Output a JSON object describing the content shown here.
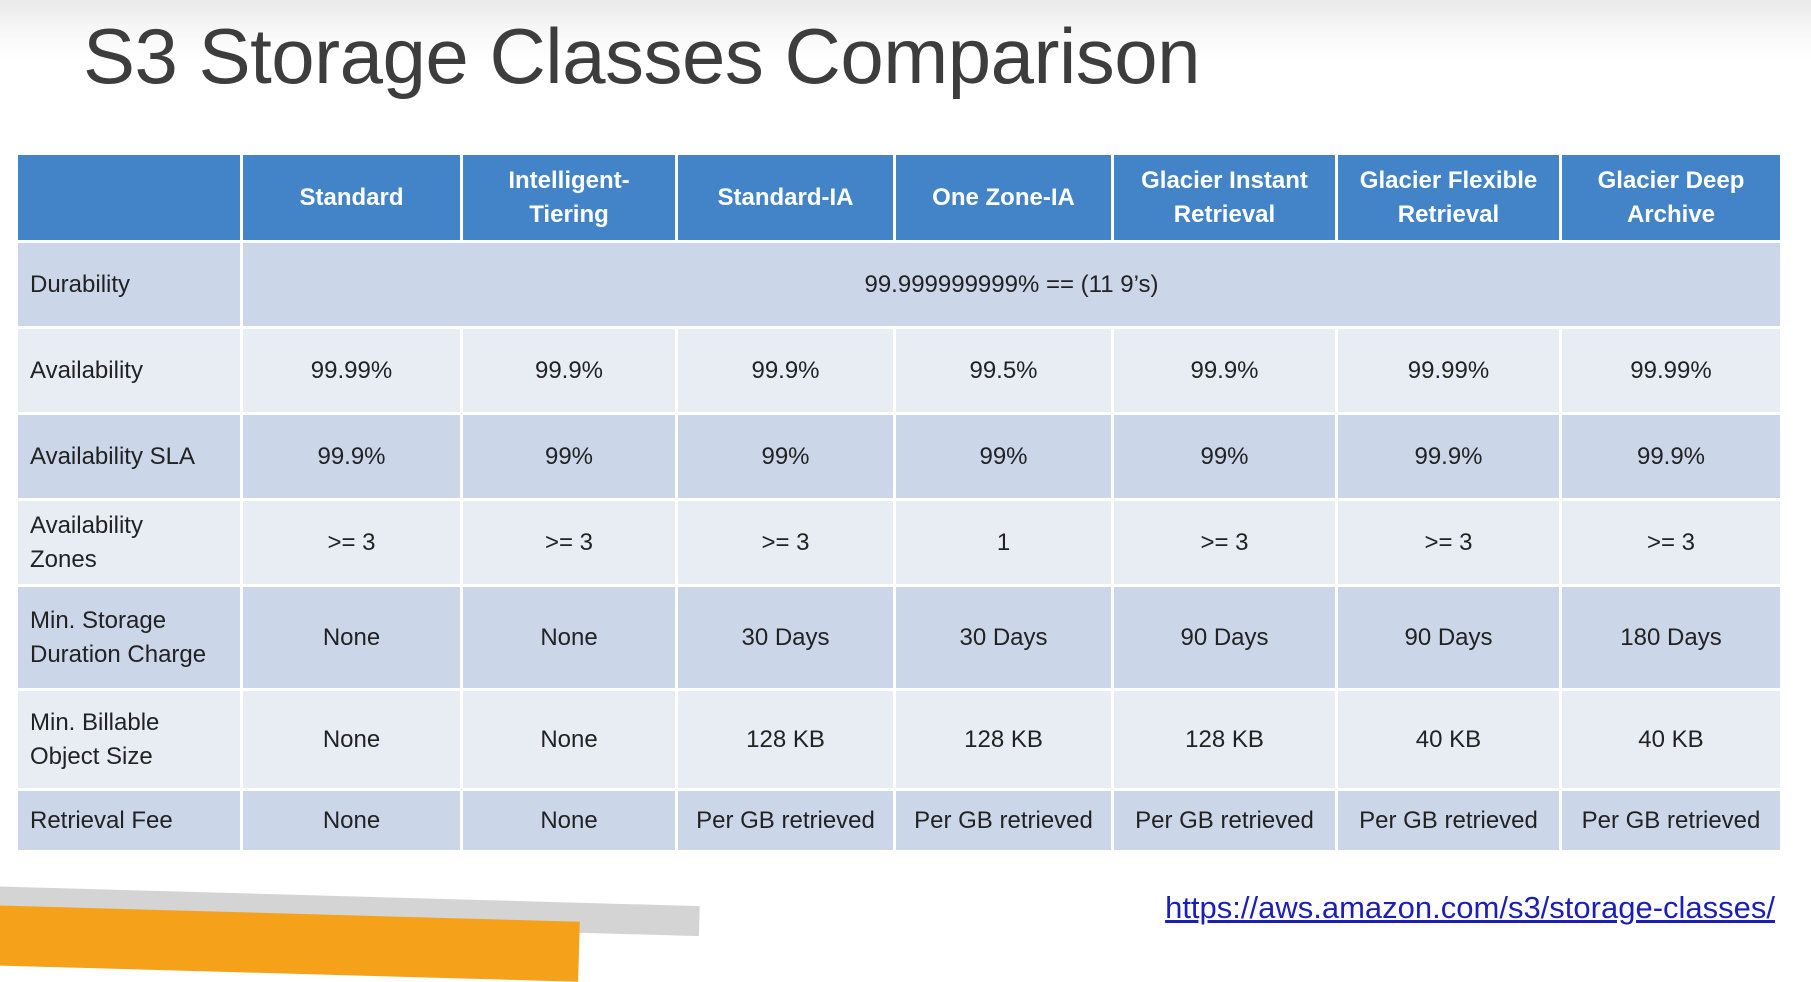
{
  "slide": {
    "title": "S3 Storage Classes Comparison",
    "link": "https://aws.amazon.com/s3/storage-classes/"
  },
  "table": {
    "columns": [
      "",
      "Standard",
      "Intelligent-\nTiering",
      "Standard-IA",
      "One Zone-IA",
      "Glacier Instant\nRetrieval",
      "Glacier Flexible\nRetrieval",
      "Glacier Deep\nArchive"
    ],
    "durability": {
      "label": "Durability",
      "value": "99.999999999% == (11 9’s)"
    },
    "rows": [
      {
        "label": "Availability",
        "values": [
          "99.99%",
          "99.9%",
          "99.9%",
          "99.5%",
          "99.9%",
          "99.99%",
          "99.99%"
        ]
      },
      {
        "label": "Availability SLA",
        "values": [
          "99.9%",
          "99%",
          "99%",
          "99%",
          "99%",
          "99.9%",
          "99.9%"
        ]
      },
      {
        "label": "Availability\nZones",
        "values": [
          ">= 3",
          ">= 3",
          ">= 3",
          "1",
          ">= 3",
          ">= 3",
          ">= 3"
        ]
      },
      {
        "label": "Min. Storage\nDuration Charge",
        "values": [
          "None",
          "None",
          "30 Days",
          "30 Days",
          "90 Days",
          "90 Days",
          "180 Days"
        ]
      },
      {
        "label": "Min. Billable\nObject Size",
        "values": [
          "None",
          "None",
          "128 KB",
          "128 KB",
          "128 KB",
          "40 KB",
          "40 KB"
        ]
      },
      {
        "label": "Retrieval Fee",
        "values": [
          "None",
          "None",
          "Per GB retrieved",
          "Per GB retrieved",
          "Per GB retrieved",
          "Per GB retrieved",
          "Per GB retrieved"
        ]
      }
    ]
  },
  "colors": {
    "header_bg": "#4383c8",
    "row_dark": "#cbd7e9",
    "row_light": "#e8edf4",
    "link": "#1b1fb8",
    "accent_orange": "#f5a11a"
  }
}
